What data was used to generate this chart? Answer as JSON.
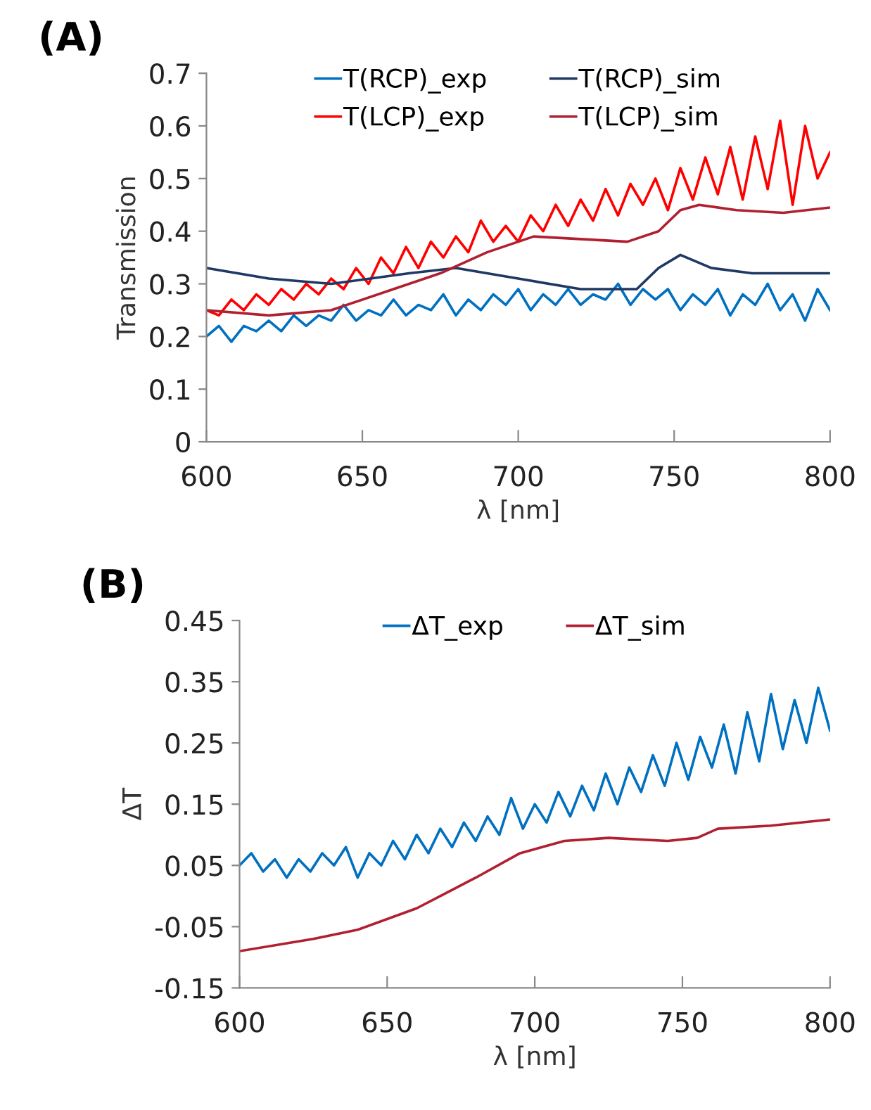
{
  "chart_data": [
    {
      "type": "line",
      "title": "(A)",
      "xlabel": "λ [nm]",
      "ylabel": "Transmission",
      "xlim": [
        600,
        800
      ],
      "xticks": [
        600,
        650,
        700,
        750,
        800
      ],
      "ylim": [
        0,
        0.7
      ],
      "yticks": [
        0,
        0.1,
        0.2,
        0.3,
        0.4,
        0.5,
        0.6,
        0.7
      ],
      "legend": "top",
      "x": [
        600,
        604,
        608,
        612,
        616,
        620,
        624,
        628,
        632,
        636,
        640,
        644,
        648,
        652,
        656,
        660,
        664,
        668,
        672,
        676,
        680,
        684,
        688,
        692,
        696,
        700,
        704,
        708,
        712,
        716,
        720,
        724,
        728,
        732,
        736,
        740,
        744,
        748,
        752,
        756,
        760,
        764,
        768,
        772,
        776,
        780,
        784,
        788,
        792,
        796,
        800
      ],
      "series": [
        {
          "name": "T(RCP)_exp",
          "color": "#0070c0",
          "values": [
            0.2,
            0.22,
            0.19,
            0.22,
            0.21,
            0.23,
            0.21,
            0.24,
            0.22,
            0.24,
            0.23,
            0.26,
            0.23,
            0.25,
            0.24,
            0.27,
            0.24,
            0.26,
            0.25,
            0.28,
            0.24,
            0.27,
            0.25,
            0.28,
            0.26,
            0.29,
            0.25,
            0.28,
            0.26,
            0.29,
            0.26,
            0.28,
            0.27,
            0.3,
            0.26,
            0.29,
            0.27,
            0.29,
            0.25,
            0.28,
            0.26,
            0.29,
            0.24,
            0.28,
            0.26,
            0.3,
            0.25,
            0.28,
            0.23,
            0.29,
            0.25
          ]
        },
        {
          "name": "T(LCP)_exp",
          "color": "#ff0000",
          "values": [
            0.25,
            0.24,
            0.27,
            0.25,
            0.28,
            0.26,
            0.29,
            0.27,
            0.3,
            0.28,
            0.31,
            0.29,
            0.33,
            0.3,
            0.35,
            0.32,
            0.37,
            0.33,
            0.38,
            0.35,
            0.39,
            0.36,
            0.42,
            0.38,
            0.41,
            0.38,
            0.43,
            0.4,
            0.45,
            0.41,
            0.46,
            0.42,
            0.48,
            0.43,
            0.49,
            0.45,
            0.5,
            0.44,
            0.52,
            0.46,
            0.54,
            0.47,
            0.56,
            0.46,
            0.58,
            0.48,
            0.61,
            0.45,
            0.6,
            0.5,
            0.55
          ]
        },
        {
          "name": "T(RCP)_sim",
          "color": "#1f3864",
          "x": [
            600,
            620,
            640,
            665,
            680,
            700,
            720,
            738,
            745,
            752,
            762,
            775,
            800
          ],
          "values": [
            0.33,
            0.31,
            0.3,
            0.32,
            0.33,
            0.31,
            0.29,
            0.29,
            0.33,
            0.355,
            0.33,
            0.32,
            0.32
          ]
        },
        {
          "name": "T(LCP)_sim",
          "color": "#b02030",
          "x": [
            600,
            620,
            640,
            660,
            675,
            690,
            705,
            720,
            735,
            745,
            752,
            758,
            770,
            785,
            800
          ],
          "values": [
            0.25,
            0.24,
            0.25,
            0.29,
            0.32,
            0.36,
            0.39,
            0.385,
            0.38,
            0.4,
            0.44,
            0.45,
            0.44,
            0.435,
            0.445
          ]
        }
      ]
    },
    {
      "type": "line",
      "title": "(B)",
      "xlabel": "λ [nm]",
      "ylabel": "ΔT",
      "xlim": [
        600,
        800
      ],
      "xticks": [
        600,
        650,
        700,
        750,
        800
      ],
      "ylim": [
        -0.15,
        0.45
      ],
      "yticks": [
        -0.15,
        -0.05,
        0.05,
        0.15,
        0.25,
        0.35,
        0.45
      ],
      "legend": "top",
      "x": [
        600,
        604,
        608,
        612,
        616,
        620,
        624,
        628,
        632,
        636,
        640,
        644,
        648,
        652,
        656,
        660,
        664,
        668,
        672,
        676,
        680,
        684,
        688,
        692,
        696,
        700,
        704,
        708,
        712,
        716,
        720,
        724,
        728,
        732,
        736,
        740,
        744,
        748,
        752,
        756,
        760,
        764,
        768,
        772,
        776,
        780,
        784,
        788,
        792,
        796,
        800
      ],
      "series": [
        {
          "name": "ΔT_exp",
          "color": "#0070c0",
          "values": [
            0.05,
            0.07,
            0.04,
            0.06,
            0.03,
            0.06,
            0.04,
            0.07,
            0.05,
            0.08,
            0.03,
            0.07,
            0.05,
            0.09,
            0.06,
            0.1,
            0.07,
            0.11,
            0.08,
            0.12,
            0.09,
            0.13,
            0.1,
            0.16,
            0.11,
            0.15,
            0.12,
            0.17,
            0.13,
            0.18,
            0.14,
            0.2,
            0.15,
            0.21,
            0.17,
            0.23,
            0.18,
            0.25,
            0.19,
            0.26,
            0.21,
            0.28,
            0.2,
            0.3,
            0.22,
            0.33,
            0.24,
            0.32,
            0.25,
            0.34,
            0.27
          ]
        },
        {
          "name": "ΔT_sim",
          "color": "#b02030",
          "x": [
            600,
            625,
            640,
            660,
            680,
            695,
            710,
            725,
            745,
            755,
            762,
            780,
            800
          ],
          "values": [
            -0.09,
            -0.07,
            -0.055,
            -0.02,
            0.03,
            0.07,
            0.09,
            0.095,
            0.09,
            0.095,
            0.11,
            0.115,
            0.125
          ]
        }
      ]
    }
  ]
}
